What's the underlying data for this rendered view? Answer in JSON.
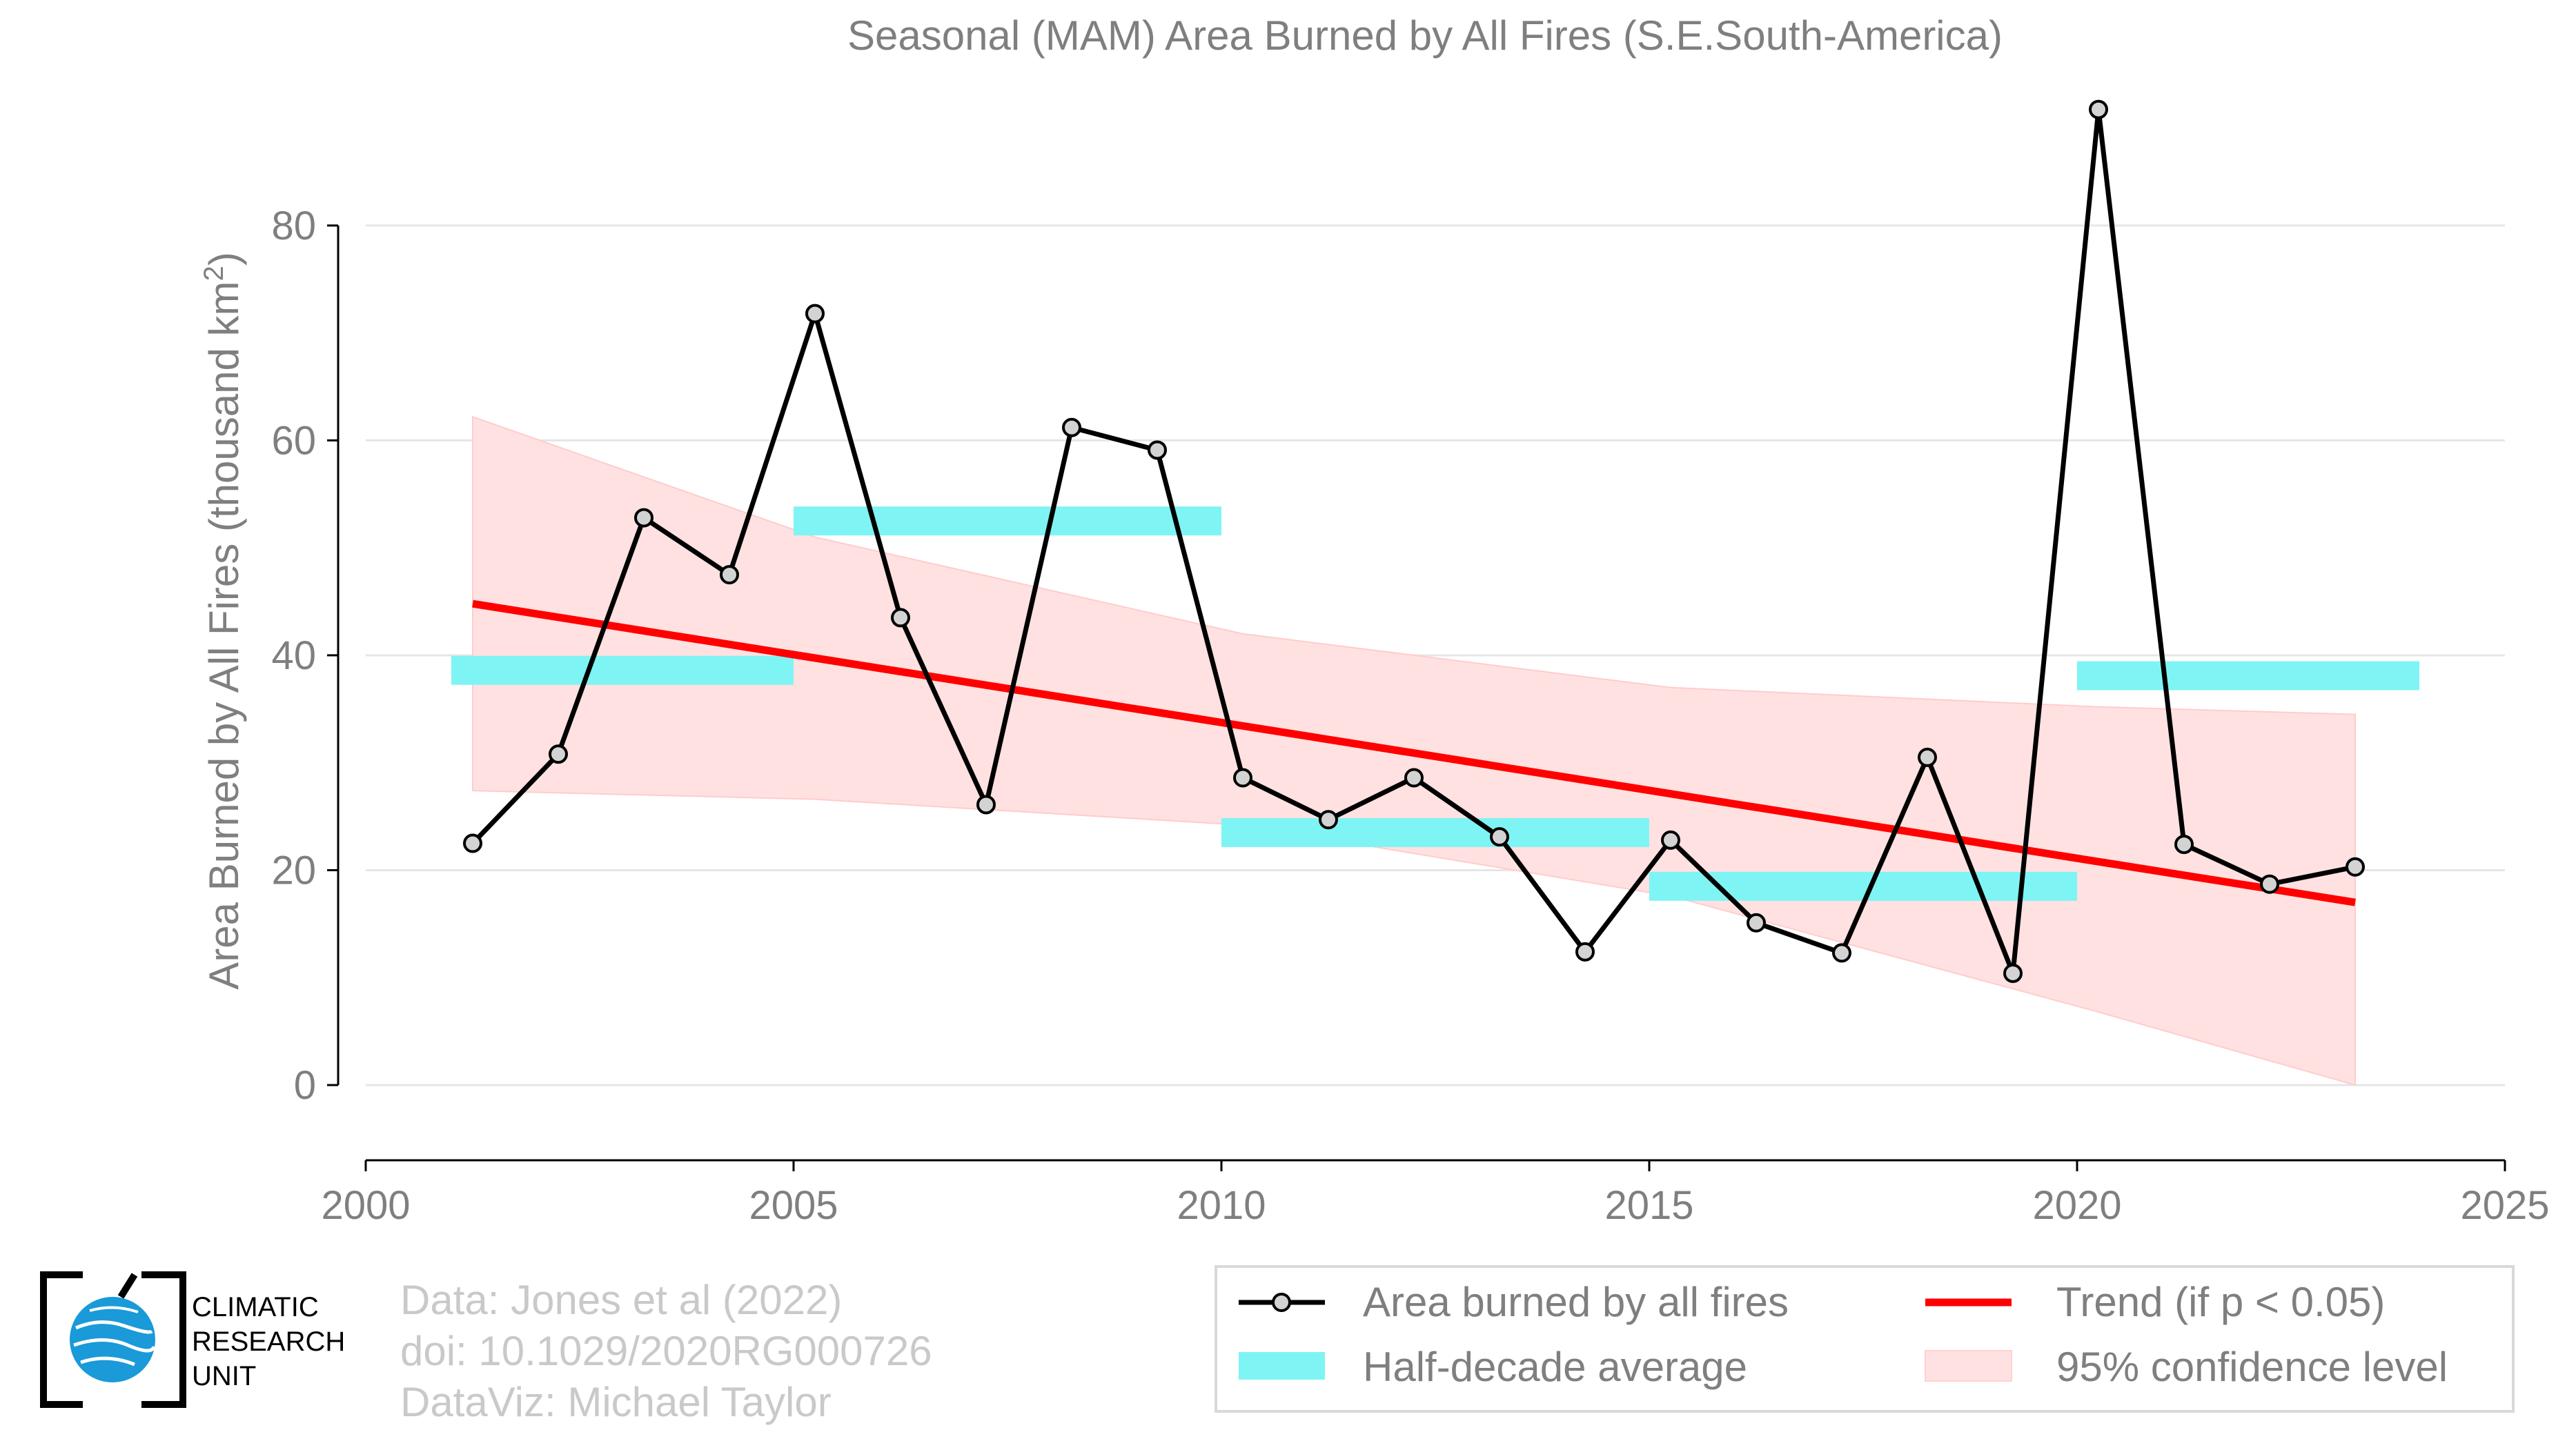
{
  "chart_data": {
    "type": "line",
    "title": "Seasonal (MAM) Area Burned by All Fires (S.E.South-America)",
    "ylabel": "Area Burned by All Fires (thousand km",
    "ylabel_sup": "2",
    "ylabel_end": ")",
    "xlim": [
      2000,
      2025
    ],
    "ylim": [
      -7,
      92
    ],
    "xticks": [
      2000,
      2005,
      2010,
      2015,
      2020,
      2025
    ],
    "yticks": [
      0,
      20,
      40,
      60,
      80
    ],
    "grid": true,
    "legend_position": "bottom-right",
    "colors": {
      "series": "#000000",
      "marker_fill": "#d3d3d3",
      "trend": "#ff0000",
      "half_decade": "#7ff4f4",
      "confidence": "#ffe1e1",
      "axis_text": "#7f7f7f",
      "grid": "#e6e6e6"
    },
    "series": [
      {
        "name": "Area burned by all fires",
        "x": [
          2001.25,
          2002.25,
          2003.25,
          2004.25,
          2005.25,
          2006.25,
          2007.25,
          2008.25,
          2009.25,
          2010.25,
          2011.25,
          2012.25,
          2013.25,
          2014.25,
          2015.25,
          2016.25,
          2017.25,
          2018.25,
          2019.25,
          2020.25,
          2021.25,
          2022.25,
          2023.25
        ],
        "values": [
          22.5,
          30.8,
          52.8,
          47.5,
          71.8,
          43.5,
          26.1,
          61.2,
          59.1,
          28.6,
          24.7,
          28.6,
          23.1,
          12.4,
          22.8,
          15.1,
          12.3,
          30.5,
          10.4,
          90.8,
          22.4,
          18.7,
          20.3
        ]
      }
    ],
    "half_decade_average": {
      "name": "Half-decade average",
      "segments": [
        {
          "x_start": 2001,
          "x_end": 2005,
          "value": 38.6
        },
        {
          "x_start": 2005,
          "x_end": 2010,
          "value": 52.5
        },
        {
          "x_start": 2010,
          "x_end": 2015,
          "value": 23.5
        },
        {
          "x_start": 2015,
          "x_end": 2020,
          "value": 18.5
        },
        {
          "x_start": 2020,
          "x_end": 2024,
          "value": 38.1
        }
      ]
    },
    "trend": {
      "name": "Trend (if p < 0.05)",
      "x": [
        2001.25,
        2023.25
      ],
      "values": [
        44.8,
        17.0
      ]
    },
    "confidence_band": {
      "name": "95% confidence level",
      "x": [
        2001.25,
        2005.25,
        2010.25,
        2015.25,
        2020.25,
        2023.25
      ],
      "upper": [
        62.2,
        51.0,
        42.0,
        37.0,
        35.2,
        34.5
      ],
      "lower": [
        27.4,
        26.6,
        24.2,
        17.6,
        6.8,
        0.0
      ]
    }
  },
  "credits": {
    "line1": "Data: Jones et al (2022)",
    "line2": "doi: 10.1029/2020RG000726",
    "line3": "DataViz: Michael Taylor"
  },
  "logo": {
    "line1": "CLIMATIC",
    "line2": "RESEARCH",
    "line3": "UNIT"
  }
}
